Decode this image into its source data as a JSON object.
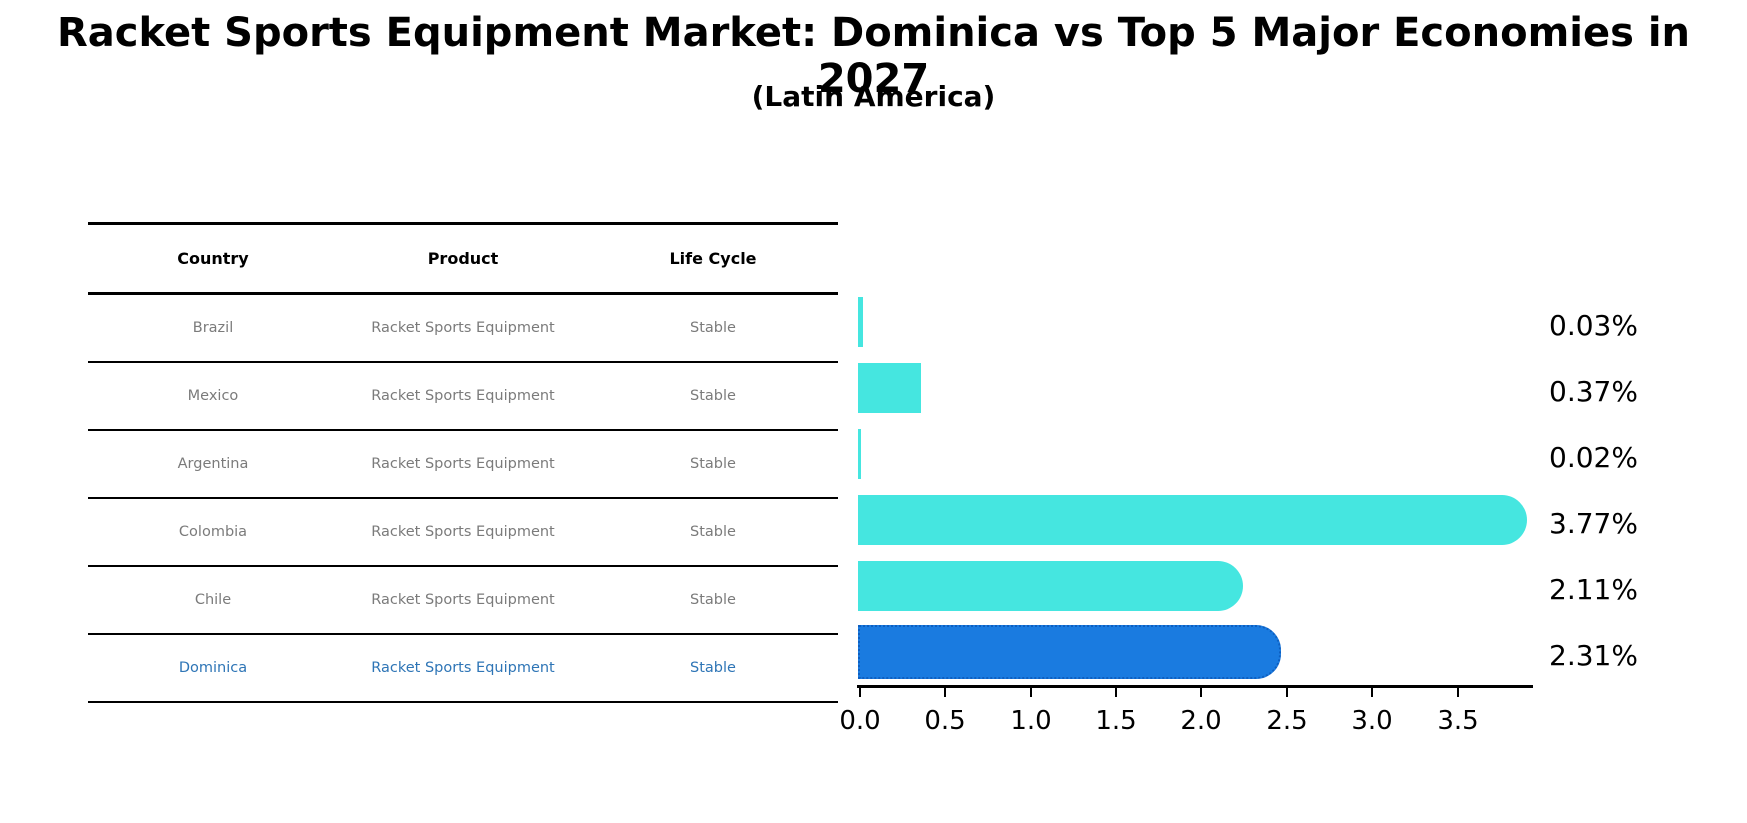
{
  "header": {
    "title": "Racket Sports Equipment Market: Dominica vs Top 5 Major Economies in 2027",
    "subtitle": "(Latin America)"
  },
  "table": {
    "headers": [
      "Country",
      "Product",
      "Life Cycle"
    ],
    "rows": [
      {
        "country": "Brazil",
        "product": "Racket Sports Equipment",
        "life_cycle": "Stable",
        "highlight": false
      },
      {
        "country": "Mexico",
        "product": "Racket Sports Equipment",
        "life_cycle": "Stable",
        "highlight": false
      },
      {
        "country": "Argentina",
        "product": "Racket Sports Equipment",
        "life_cycle": "Stable",
        "highlight": false
      },
      {
        "country": "Colombia",
        "product": "Racket Sports Equipment",
        "life_cycle": "Stable",
        "highlight": false
      },
      {
        "country": "Chile",
        "product": "Racket Sports Equipment",
        "life_cycle": "Stable",
        "highlight": false
      },
      {
        "country": "Dominica",
        "product": "Racket Sports Equipment",
        "life_cycle": "Stable",
        "highlight": true
      }
    ]
  },
  "chart_data": {
    "type": "bar",
    "orientation": "horizontal",
    "title": "Racket Sports Equipment Market: Dominica vs Top 5 Major Economies in 2027",
    "subtitle": "(Latin America)",
    "categories": [
      "Brazil",
      "Mexico",
      "Argentina",
      "Colombia",
      "Chile",
      "Dominica"
    ],
    "values": [
      0.03,
      0.37,
      0.02,
      3.77,
      2.11,
      2.31
    ],
    "value_labels": [
      "0.03%",
      "0.37%",
      "0.02%",
      "3.77%",
      "2.11%",
      "2.31%"
    ],
    "x_ticks": [
      "0.0",
      "0.5",
      "1.0",
      "1.5",
      "2.0",
      "2.5",
      "3.0",
      "3.5"
    ],
    "xlim": [
      0,
      3.96
    ],
    "grid": false,
    "legend": false,
    "highlight_index": 5,
    "bar_color": "#45e6e0",
    "highlight_color": "#1a7be0",
    "highlight_border_color": "#0e5fc0"
  },
  "colors": {
    "accent_cyan": "#45e6e0",
    "accent_blue": "#1a7be0",
    "highlight_text": "#2e75b6",
    "table_text": "#7b7b7b",
    "axis": "#000000"
  }
}
